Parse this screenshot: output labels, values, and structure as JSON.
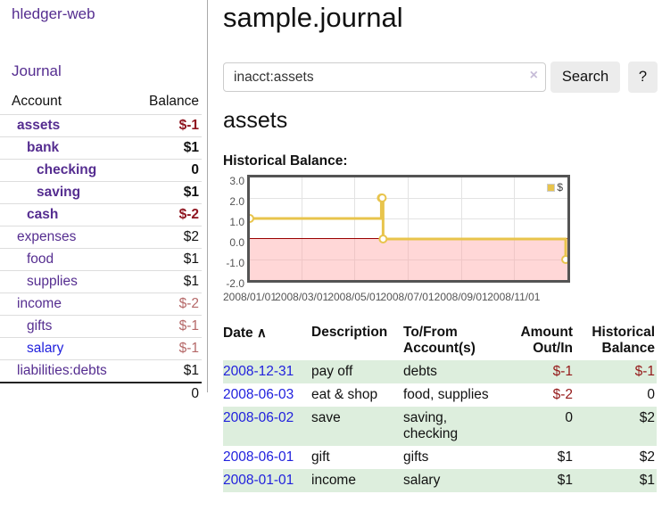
{
  "app": {
    "brand": "hledger-web",
    "nav": {
      "journal": "Journal"
    }
  },
  "sidebar": {
    "header": {
      "account": "Account",
      "balance": "Balance"
    },
    "accounts": [
      {
        "name": "assets",
        "balance": "$-1",
        "depth": 1,
        "bold": true,
        "balance_class": "neg-strong",
        "link": "purple"
      },
      {
        "name": "bank",
        "balance": "$1",
        "depth": 2,
        "bold": true,
        "balance_class": "",
        "link": "purple"
      },
      {
        "name": "checking",
        "balance": "0",
        "depth": 3,
        "bold": true,
        "balance_class": "",
        "link": "purple"
      },
      {
        "name": "saving",
        "balance": "$1",
        "depth": 3,
        "bold": true,
        "balance_class": "",
        "link": "purple"
      },
      {
        "name": "cash",
        "balance": "$-2",
        "depth": 2,
        "bold": true,
        "balance_class": "neg-strong",
        "link": "purple"
      },
      {
        "name": "expenses",
        "balance": "$2",
        "depth": 1,
        "bold": false,
        "balance_class": "",
        "link": "purple"
      },
      {
        "name": "food",
        "balance": "$1",
        "depth": 2,
        "bold": false,
        "balance_class": "",
        "link": "purple"
      },
      {
        "name": "supplies",
        "balance": "$1",
        "depth": 2,
        "bold": false,
        "balance_class": "",
        "link": "purple"
      },
      {
        "name": "income",
        "balance": "$-2",
        "depth": 1,
        "bold": false,
        "balance_class": "neg-soft",
        "link": "purple"
      },
      {
        "name": "gifts",
        "balance": "$-1",
        "depth": 2,
        "bold": false,
        "balance_class": "neg-soft",
        "link": "purple"
      },
      {
        "name": "salary",
        "balance": "$-1",
        "depth": 2,
        "bold": false,
        "balance_class": "neg-soft",
        "link": "blue"
      },
      {
        "name": "liabilities:debts",
        "balance": "$1",
        "depth": 1,
        "bold": false,
        "balance_class": "",
        "link": "purple"
      }
    ],
    "total": "0"
  },
  "main": {
    "title": "sample.journal",
    "search": {
      "value": "inacct:assets",
      "clear_icon": "×",
      "search_label": "Search",
      "help_label": "?"
    },
    "account_title": "assets",
    "chart_label": "Historical Balance:"
  },
  "chart_data": {
    "type": "line",
    "title": "Historical Balance",
    "style": "step-after",
    "series": [
      {
        "name": "$",
        "color": "#e8c44c",
        "points": [
          {
            "date": "2008-01-01",
            "value": 1
          },
          {
            "date": "2008-06-01",
            "value": 2
          },
          {
            "date": "2008-06-02",
            "value": 2
          },
          {
            "date": "2008-06-03",
            "value": 0
          },
          {
            "date": "2008-12-31",
            "value": -1
          }
        ]
      }
    ],
    "x_ticks": [
      "2008/01/01",
      "2008/03/01",
      "2008/05/01",
      "2008/07/01",
      "2008/09/01",
      "2008/11/01"
    ],
    "y_ticks": [
      "3.0",
      "2.0",
      "1.0",
      "0.0",
      "-1.0",
      "-2.0"
    ],
    "ylim": [
      -2,
      3
    ],
    "x_start": "2008-01-01",
    "grid": true,
    "legend": {
      "label": "$",
      "position": "top-right"
    },
    "negative_region_color": "#fcdcdc",
    "zero_line_color": "#990000"
  },
  "register": {
    "sort_icon": "∧",
    "columns": [
      {
        "label": "Date"
      },
      {
        "label": "Description"
      },
      {
        "label": "To/From Account(s)"
      },
      {
        "label": "Amount Out/In"
      },
      {
        "label": "Historical Balance"
      }
    ],
    "rows": [
      {
        "date": "2008-12-31",
        "description": "pay off",
        "accounts": "debts",
        "amount": "$-1",
        "amount_negative": true,
        "balance": "$-1",
        "balance_negative": true
      },
      {
        "date": "2008-06-03",
        "description": "eat & shop",
        "accounts": "food, supplies",
        "amount": "$-2",
        "amount_negative": true,
        "balance": "0",
        "balance_negative": false
      },
      {
        "date": "2008-06-02",
        "description": "save",
        "accounts": "saving, checking",
        "amount": "0",
        "amount_negative": false,
        "balance": "$2",
        "balance_negative": false
      },
      {
        "date": "2008-06-01",
        "description": "gift",
        "accounts": "gifts",
        "amount": "$1",
        "amount_negative": false,
        "balance": "$2",
        "balance_negative": false
      },
      {
        "date": "2008-01-01",
        "description": "income",
        "accounts": "salary",
        "amount": "$1",
        "amount_negative": false,
        "balance": "$1",
        "balance_negative": false
      }
    ]
  },
  "colors": {
    "link_purple": "#552d90",
    "link_blue": "#2121dd",
    "negative_strong": "#8f1520",
    "negative_soft": "#b56868",
    "negative_table": "#941919",
    "row_stripe_green": "#ddeedd",
    "chart_line_gold": "#e8c44c",
    "chart_border": "#545454"
  }
}
